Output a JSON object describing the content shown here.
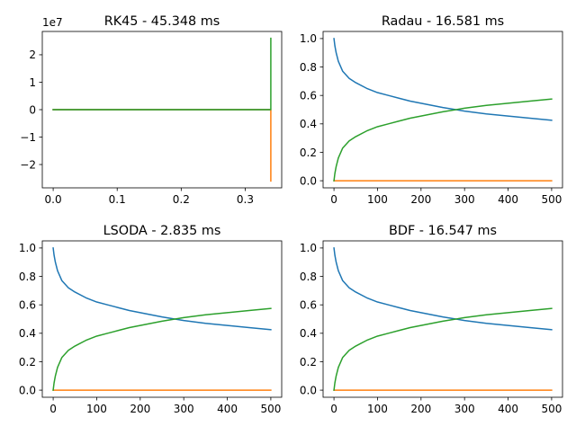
{
  "chart_data": [
    {
      "type": "line",
      "title": "RK45 - 45.348 ms",
      "xlabel": "",
      "ylabel": "",
      "xlim": [
        -0.017,
        0.357
      ],
      "ylim": [
        -2.85,
        2.85
      ],
      "y_offset_label": "1e7",
      "x_ticks": [
        0.0,
        0.1,
        0.2,
        0.3
      ],
      "x_tick_labels": [
        "0.0",
        "0.1",
        "0.2",
        "0.3"
      ],
      "y_ticks": [
        -2,
        -1,
        0,
        1,
        2
      ],
      "y_tick_labels": [
        "−2",
        "−1",
        "0",
        "1",
        "2"
      ],
      "series": [
        {
          "color": "#1f77b4",
          "x": [
            0,
            0.338
          ],
          "y": [
            0,
            0
          ]
        },
        {
          "color": "#ff7f0e",
          "x": [
            0,
            0.338,
            0.34,
            0.34
          ],
          "y": [
            0,
            0,
            0,
            -2.6
          ]
        },
        {
          "color": "#2ca02c",
          "x": [
            0,
            0.338,
            0.34,
            0.34
          ],
          "y": [
            0,
            0,
            0,
            2.6
          ]
        }
      ]
    },
    {
      "type": "line",
      "title": "Radau - 16.581 ms",
      "xlabel": "",
      "ylabel": "",
      "xlim": [
        -25,
        525
      ],
      "ylim": [
        -0.05,
        1.05
      ],
      "x_ticks": [
        0,
        100,
        200,
        300,
        400,
        500
      ],
      "x_tick_labels": [
        "0",
        "100",
        "200",
        "300",
        "400",
        "500"
      ],
      "y_ticks": [
        0.0,
        0.2,
        0.4,
        0.6,
        0.8,
        1.0
      ],
      "y_tick_labels": [
        "0.0",
        "0.2",
        "0.4",
        "0.6",
        "0.8",
        "1.0"
      ],
      "series": [
        {
          "color": "#1f77b4",
          "x": [
            0,
            2,
            5,
            10,
            20,
            35,
            50,
            75,
            100,
            125,
            150,
            175,
            200,
            250,
            300,
            350,
            400,
            450,
            500
          ],
          "y": [
            1.0,
            0.95,
            0.9,
            0.84,
            0.77,
            0.72,
            0.69,
            0.65,
            0.62,
            0.6,
            0.58,
            0.56,
            0.545,
            0.515,
            0.49,
            0.47,
            0.455,
            0.44,
            0.425
          ]
        },
        {
          "color": "#ff7f0e",
          "x": [
            0,
            500
          ],
          "y": [
            0,
            0
          ]
        },
        {
          "color": "#2ca02c",
          "x": [
            0,
            2,
            5,
            10,
            20,
            35,
            50,
            75,
            100,
            125,
            150,
            175,
            200,
            250,
            300,
            350,
            400,
            450,
            500
          ],
          "y": [
            0.0,
            0.05,
            0.1,
            0.16,
            0.23,
            0.28,
            0.31,
            0.35,
            0.38,
            0.4,
            0.42,
            0.44,
            0.455,
            0.485,
            0.51,
            0.53,
            0.545,
            0.56,
            0.575
          ]
        }
      ]
    },
    {
      "type": "line",
      "title": "LSODA - 2.835 ms",
      "xlabel": "",
      "ylabel": "",
      "xlim": [
        -25,
        525
      ],
      "ylim": [
        -0.05,
        1.05
      ],
      "x_ticks": [
        0,
        100,
        200,
        300,
        400,
        500
      ],
      "x_tick_labels": [
        "0",
        "100",
        "200",
        "300",
        "400",
        "500"
      ],
      "y_ticks": [
        0.0,
        0.2,
        0.4,
        0.6,
        0.8,
        1.0
      ],
      "y_tick_labels": [
        "0.0",
        "0.2",
        "0.4",
        "0.6",
        "0.8",
        "1.0"
      ],
      "series": [
        {
          "color": "#1f77b4",
          "x": [
            0,
            2,
            5,
            10,
            20,
            35,
            50,
            75,
            100,
            125,
            150,
            175,
            200,
            250,
            300,
            350,
            400,
            450,
            500
          ],
          "y": [
            1.0,
            0.95,
            0.9,
            0.84,
            0.77,
            0.72,
            0.69,
            0.65,
            0.62,
            0.6,
            0.58,
            0.56,
            0.545,
            0.515,
            0.49,
            0.47,
            0.455,
            0.44,
            0.425
          ]
        },
        {
          "color": "#ff7f0e",
          "x": [
            0,
            500
          ],
          "y": [
            0,
            0
          ]
        },
        {
          "color": "#2ca02c",
          "x": [
            0,
            2,
            5,
            10,
            20,
            35,
            50,
            75,
            100,
            125,
            150,
            175,
            200,
            250,
            300,
            350,
            400,
            450,
            500
          ],
          "y": [
            0.0,
            0.05,
            0.1,
            0.16,
            0.23,
            0.28,
            0.31,
            0.35,
            0.38,
            0.4,
            0.42,
            0.44,
            0.455,
            0.485,
            0.51,
            0.53,
            0.545,
            0.56,
            0.575
          ]
        }
      ]
    },
    {
      "type": "line",
      "title": "BDF - 16.547 ms",
      "xlabel": "",
      "ylabel": "",
      "xlim": [
        -25,
        525
      ],
      "ylim": [
        -0.05,
        1.05
      ],
      "x_ticks": [
        0,
        100,
        200,
        300,
        400,
        500
      ],
      "x_tick_labels": [
        "0",
        "100",
        "200",
        "300",
        "400",
        "500"
      ],
      "y_ticks": [
        0.0,
        0.2,
        0.4,
        0.6,
        0.8,
        1.0
      ],
      "y_tick_labels": [
        "0.0",
        "0.2",
        "0.4",
        "0.6",
        "0.8",
        "1.0"
      ],
      "series": [
        {
          "color": "#1f77b4",
          "x": [
            0,
            2,
            5,
            10,
            20,
            35,
            50,
            75,
            100,
            125,
            150,
            175,
            200,
            250,
            300,
            350,
            400,
            450,
            500
          ],
          "y": [
            1.0,
            0.95,
            0.9,
            0.84,
            0.77,
            0.72,
            0.69,
            0.65,
            0.62,
            0.6,
            0.58,
            0.56,
            0.545,
            0.515,
            0.49,
            0.47,
            0.455,
            0.44,
            0.425
          ]
        },
        {
          "color": "#ff7f0e",
          "x": [
            0,
            500
          ],
          "y": [
            0,
            0
          ]
        },
        {
          "color": "#2ca02c",
          "x": [
            0,
            2,
            5,
            10,
            20,
            35,
            50,
            75,
            100,
            125,
            150,
            175,
            200,
            250,
            300,
            350,
            400,
            450,
            500
          ],
          "y": [
            0.0,
            0.05,
            0.1,
            0.16,
            0.23,
            0.28,
            0.31,
            0.35,
            0.38,
            0.4,
            0.42,
            0.44,
            0.455,
            0.485,
            0.51,
            0.53,
            0.545,
            0.56,
            0.575
          ]
        }
      ]
    }
  ]
}
